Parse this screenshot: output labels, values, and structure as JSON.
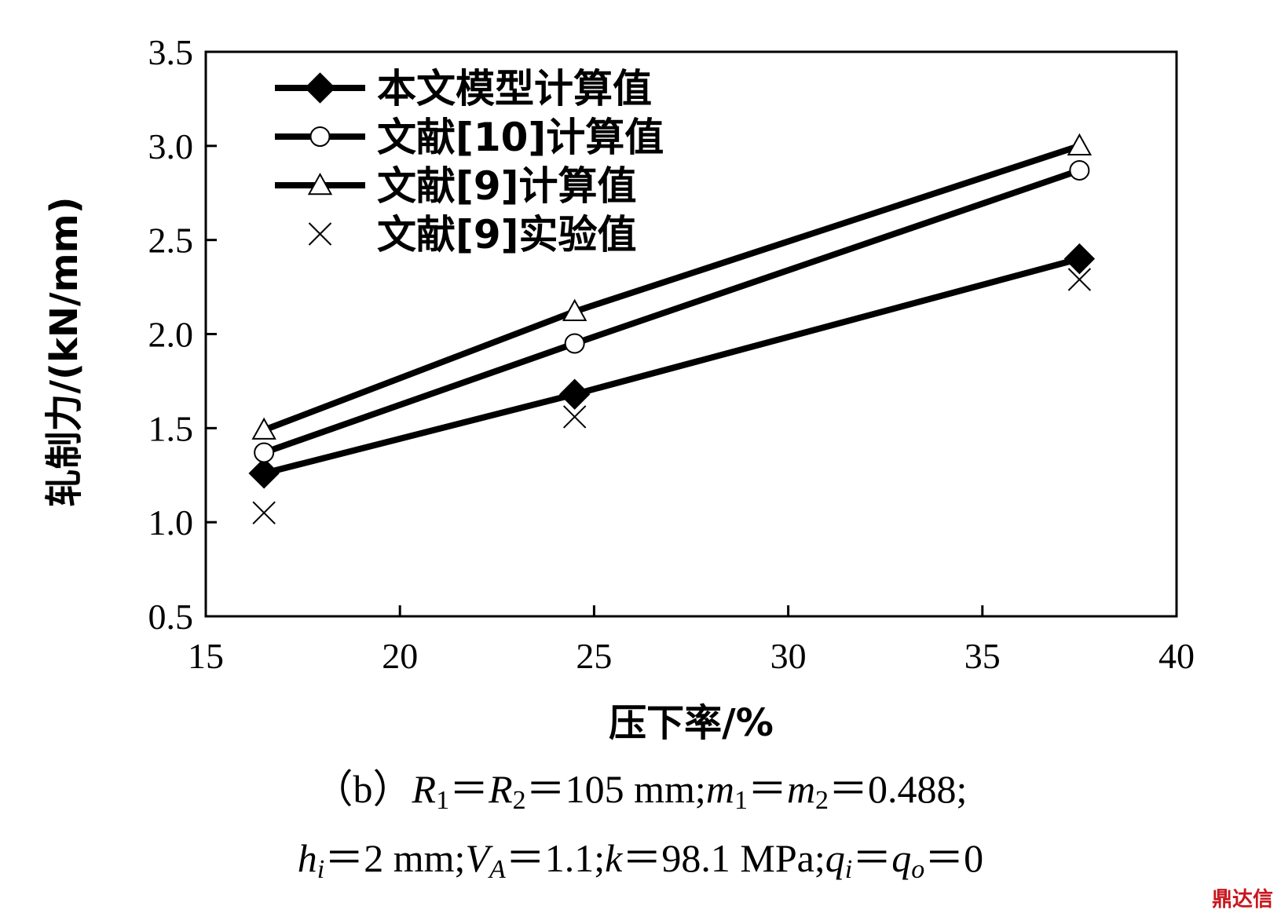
{
  "chart_data": {
    "type": "line",
    "xlabel": "压下率/%",
    "ylabel": "轧制力/(kN/mm)",
    "xlim": [
      15,
      40
    ],
    "ylim": [
      0.5,
      3.5
    ],
    "x_ticks": [
      "15",
      "20",
      "25",
      "30",
      "35",
      "40"
    ],
    "y_ticks": [
      "0.5",
      "1.0",
      "1.5",
      "2.0",
      "2.5",
      "3.0",
      "3.5"
    ],
    "x": [
      16.5,
      24.5,
      37.5
    ],
    "grid": false,
    "legend_position": "top-left",
    "series": [
      {
        "name": "本文模型计算值",
        "marker": "filled-diamond",
        "line": true,
        "values": [
          1.26,
          1.68,
          2.4
        ]
      },
      {
        "name": "文献[10]计算值",
        "marker": "open-circle",
        "line": true,
        "values": [
          1.37,
          1.95,
          2.87
        ]
      },
      {
        "name": "文献[9]计算值",
        "marker": "open-triangle",
        "line": true,
        "values": [
          1.49,
          2.12,
          3.0
        ]
      },
      {
        "name": "文献[9]实验值",
        "marker": "cross",
        "line": false,
        "values": [
          1.05,
          1.56,
          2.29
        ]
      }
    ]
  },
  "caption": {
    "line1": [
      {
        "t": "（b）"
      },
      {
        "t": "R",
        "i": true
      },
      {
        "t": "1",
        "sub": true
      },
      {
        "t": "＝"
      },
      {
        "t": "R",
        "i": true
      },
      {
        "t": "2",
        "sub": true
      },
      {
        "t": "＝105 mm;"
      },
      {
        "t": "m",
        "i": true
      },
      {
        "t": "1",
        "sub": true
      },
      {
        "t": "＝"
      },
      {
        "t": "m",
        "i": true
      },
      {
        "t": "2",
        "sub": true
      },
      {
        "t": "＝0.488;"
      }
    ],
    "line2": [
      {
        "t": "h",
        "i": true
      },
      {
        "t": "i",
        "i": true,
        "sub": true
      },
      {
        "t": "＝2 mm;"
      },
      {
        "t": "V",
        "i": true
      },
      {
        "t": "A",
        "i": true,
        "sub": true
      },
      {
        "t": "＝1.1;"
      },
      {
        "t": "k",
        "i": true
      },
      {
        "t": "＝98.1 MPa;"
      },
      {
        "t": "q",
        "i": true
      },
      {
        "t": "i",
        "i": true,
        "sub": true
      },
      {
        "t": "＝"
      },
      {
        "t": "q",
        "i": true
      },
      {
        "t": "o",
        "i": true,
        "sub": true
      },
      {
        "t": "＝0"
      }
    ]
  },
  "watermark": "鼎达信"
}
